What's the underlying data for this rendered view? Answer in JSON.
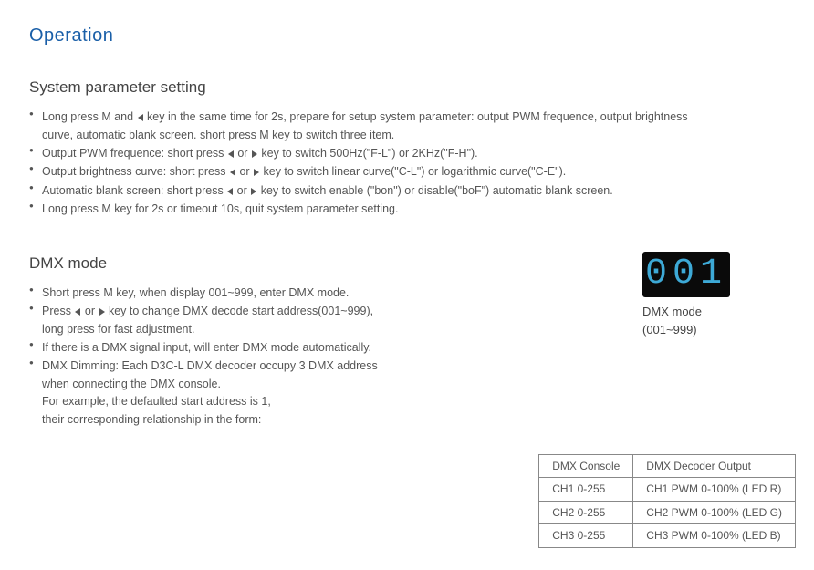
{
  "title": "Operation",
  "section1": {
    "heading": "System parameter setting",
    "items": [
      {
        "pre": "Long press M and ",
        "mid1": true,
        "post1": " key in the same time for 2s, prepare for setup system parameter: output PWM frequence, output brightness",
        "cont": "curve, automatic blank screen. short press M key to switch three item."
      },
      {
        "pre": "Output PWM frequence: short press ",
        "mid1": true,
        "mid2": " or ",
        "mid3": true,
        "post1": " key to switch 500Hz(\"F-L\") or 2KHz(\"F-H\")."
      },
      {
        "pre": "Output brightness curve: short press ",
        "mid1": true,
        "mid2": " or ",
        "mid3": true,
        "post1": " key to switch linear curve(\"C-L\") or logarithmic curve(\"C-E\")."
      },
      {
        "pre": "Automatic blank screen: short press ",
        "mid1": true,
        "mid2": " or ",
        "mid3": true,
        "post1": " key to switch enable (\"bon\") or disable(\"boF\") automatic blank screen."
      },
      {
        "pre": "Long press M key for 2s or timeout 10s, quit system parameter setting."
      }
    ]
  },
  "section2": {
    "heading": "DMX mode",
    "items": [
      {
        "text": "Short press M key, when display 001~999, enter DMX mode."
      },
      {
        "pre": "Press  ",
        "mid1": true,
        "mid2": " or ",
        "mid3": true,
        "post1": " key to change DMX decode start address(001~999),",
        "cont": "long press for fast adjustment."
      },
      {
        "text": "If there is a DMX signal input, will enter DMX mode automatically."
      },
      {
        "text": "DMX Dimming: Each D3C-L DMX decoder occupy 3 DMX address",
        "cont1": "when connecting the DMX console.",
        "cont2": "For example, the defaulted start address is 1,",
        "cont3": "their corresponding relationship in the form:"
      }
    ]
  },
  "display": {
    "value": "001",
    "caption": "DMX mode",
    "sub": "(001~999)"
  },
  "table": {
    "headers": [
      "DMX Console",
      "DMX Decoder Output"
    ],
    "rows": [
      [
        "CH1 0-255",
        "CH1 PWM 0-100% (LED R)"
      ],
      [
        "CH2 0-255",
        "CH2 PWM 0-100% (LED G)"
      ],
      [
        "CH3 0-255",
        "CH3 PWM 0-100% (LED B)"
      ]
    ]
  },
  "colors": {
    "title": "#1a5fa8",
    "text": "#555555",
    "led_bg": "#0a0a0a",
    "led_fg": "#3da9d6",
    "border": "#888888"
  }
}
